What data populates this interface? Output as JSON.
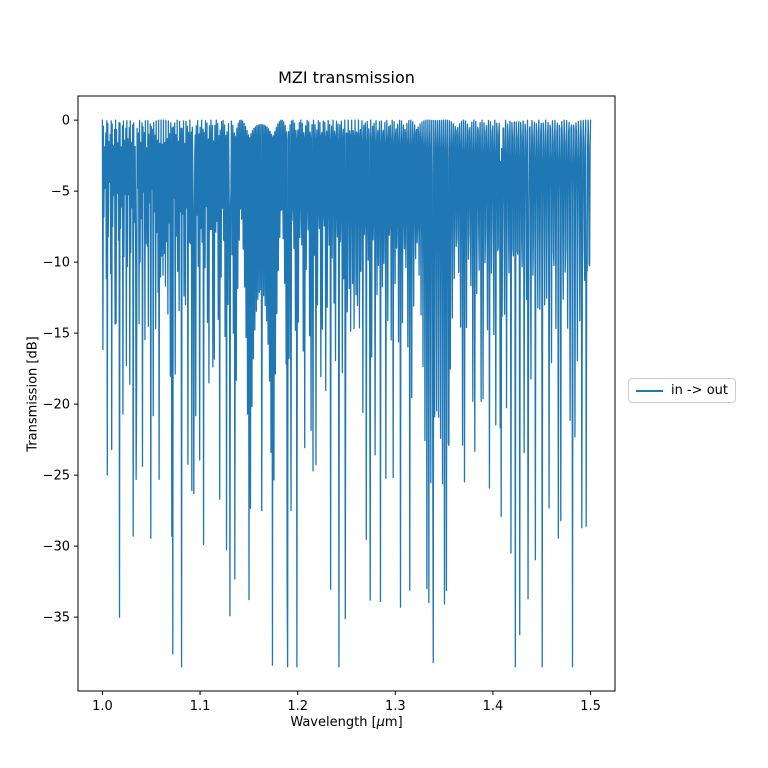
{
  "chart_data": {
    "type": "line",
    "title": "MZI transmission",
    "xlabel": "Wavelength [μm]",
    "xlabel_prefix": "Wavelength [",
    "xlabel_mu": "μ",
    "xlabel_suffix": "m]",
    "ylabel": "Transmission [dB]",
    "xlim": [
      0.975,
      1.525
    ],
    "ylim": [
      -40.2,
      1.7
    ],
    "xticks": [
      1.0,
      1.1,
      1.2,
      1.3,
      1.4,
      1.5
    ],
    "xtick_labels": [
      "1.0",
      "1.1",
      "1.2",
      "1.3",
      "1.4",
      "1.5"
    ],
    "yticks": [
      0,
      -5,
      -10,
      -15,
      -20,
      -25,
      -30,
      -35
    ],
    "ytick_labels": [
      "0",
      "−5",
      "−10",
      "−15",
      "−20",
      "−25",
      "−30",
      "−35"
    ],
    "grid": false,
    "background_color": "#ffffff",
    "axis_color": "#000000",
    "legend": {
      "entries": [
        "in -> out"
      ],
      "position": "outside-center-right",
      "edge_color": "#cccccc"
    },
    "series": [
      {
        "name": "in -> out",
        "color": "#1f77b4",
        "description": "Densely sampled Mach-Zehnder interferometer transmission spectrum: cos^2 fringes in dB with sampling-aliased dip depths; tops near 0 dB, deepest dip about -38 dB near 1.34 um",
        "model": {
          "type": "mzi_cos2_sampled",
          "wavelength_start_um": 1.0,
          "wavelength_stop_um": 1.5,
          "n_points": 1000,
          "optical_path_difference_um": 900.0,
          "floor_db": -38.5
        },
        "notable_minima": [
          [
            1.0344,
            -25.3
          ],
          [
            1.058,
            -25.3
          ],
          [
            1.0713,
            -29.3
          ],
          [
            1.0938,
            -26.3
          ],
          [
            1.1307,
            -34.9
          ],
          [
            1.1634,
            -27.5
          ],
          [
            1.1727,
            -23.4
          ],
          [
            1.189,
            -32.6
          ],
          [
            1.1931,
            -27.5
          ],
          [
            1.2157,
            -24.7
          ],
          [
            1.2485,
            -35.1
          ],
          [
            1.2741,
            -33.8
          ],
          [
            1.3386,
            -38.2
          ],
          [
            1.355,
            -22.9
          ],
          [
            1.4082,
            -27.9
          ],
          [
            1.4359,
            -33.7
          ],
          [
            1.4697,
            -28.2
          ],
          [
            1.4912,
            -28.7
          ],
          [
            1.4953,
            -28.6
          ]
        ]
      }
    ]
  }
}
